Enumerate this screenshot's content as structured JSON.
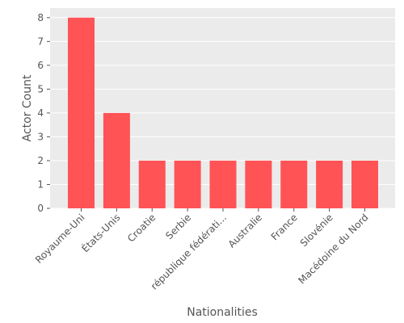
{
  "colors": {
    "bar": "#ff5356",
    "plot_background": "#ebebeb",
    "grid": "#ffffff",
    "text": "#555555"
  },
  "chart_data": {
    "type": "bar",
    "categories": [
      "Royaume-Uni",
      "États-Unis",
      "Croatie",
      "Serbie",
      "république fédérati...",
      "Australie",
      "France",
      "Slovénie",
      "Macédoine du Nord"
    ],
    "values": [
      8,
      4,
      2,
      2,
      2,
      2,
      2,
      2,
      2
    ],
    "xlabel": "Nationalities",
    "ylabel": "Actor Count",
    "ylim": [
      0,
      8.4
    ],
    "yticks": [
      "0",
      "1",
      "2",
      "3",
      "4",
      "5",
      "6",
      "7",
      "8"
    ],
    "grid": true,
    "legend": "none"
  }
}
